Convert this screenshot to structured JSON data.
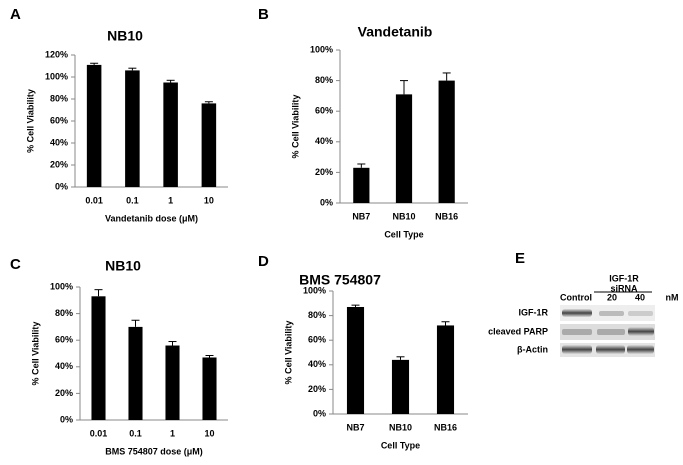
{
  "chart_data": [
    {
      "type": "bar",
      "panel_label": "A",
      "title": "NB10",
      "x_label": "Vandetanib dose (μM)",
      "y_label": "% Cell Viability",
      "categories": [
        "0.01",
        "0.1",
        "1",
        "10"
      ],
      "values": [
        111,
        106,
        95,
        76
      ],
      "errors": [
        1.5,
        2,
        2,
        1.5
      ],
      "color": "#000000",
      "ylim": [
        0,
        120
      ],
      "yticks": [
        {
          "value": 0,
          "label": "0%"
        },
        {
          "value": 20,
          "label": "20%"
        },
        {
          "value": 40,
          "label": "40%"
        },
        {
          "value": 60,
          "label": "60%"
        },
        {
          "value": 80,
          "label": "80%"
        },
        {
          "value": 100,
          "label": "100%"
        },
        {
          "value": 120,
          "label": "120%"
        }
      ]
    },
    {
      "type": "bar",
      "panel_label": "B",
      "title": "Vandetanib",
      "x_label": "Cell Type",
      "y_label": "% Cell Viability",
      "categories": [
        "NB7",
        "NB10",
        "NB16"
      ],
      "values": [
        23,
        71,
        80
      ],
      "errors": [
        2.5,
        9,
        5
      ],
      "color": "#000000",
      "ylim": [
        0,
        100
      ],
      "yticks": [
        {
          "value": 0,
          "label": "0%"
        },
        {
          "value": 20,
          "label": "20%"
        },
        {
          "value": 40,
          "label": "40%"
        },
        {
          "value": 60,
          "label": "60%"
        },
        {
          "value": 80,
          "label": "80%"
        },
        {
          "value": 100,
          "label": "100%"
        }
      ]
    },
    {
      "type": "bar",
      "panel_label": "C",
      "title": "NB10",
      "x_label": "BMS 754807 dose (μM)",
      "y_label": "% Cell Viability",
      "categories": [
        "0.01",
        "0.1",
        "1",
        "10"
      ],
      "values": [
        93,
        70,
        56,
        47
      ],
      "errors": [
        5,
        5,
        3,
        1.5
      ],
      "color": "#000000",
      "ylim": [
        0,
        100
      ],
      "yticks": [
        {
          "value": 0,
          "label": "0%"
        },
        {
          "value": 20,
          "label": "20%"
        },
        {
          "value": 40,
          "label": "40%"
        },
        {
          "value": 60,
          "label": "60%"
        },
        {
          "value": 80,
          "label": "80%"
        },
        {
          "value": 100,
          "label": "100%"
        }
      ]
    },
    {
      "type": "bar",
      "panel_label": "D",
      "title": "BMS 754807",
      "x_label": "Cell Type",
      "y_label": "% Cell Viability",
      "categories": [
        "NB7",
        "NB10",
        "NB16"
      ],
      "values": [
        87,
        44,
        72
      ],
      "errors": [
        1.5,
        2.5,
        3
      ],
      "color": "#000000",
      "ylim": [
        0,
        100
      ],
      "yticks": [
        {
          "value": 0,
          "label": "0%"
        },
        {
          "value": 20,
          "label": "20%"
        },
        {
          "value": 40,
          "label": "40%"
        },
        {
          "value": 60,
          "label": "60%"
        },
        {
          "value": 80,
          "label": "80%"
        },
        {
          "value": 100,
          "label": "100%"
        }
      ]
    }
  ],
  "blot": {
    "panel_label": "E",
    "treatment": "IGF-1R",
    "treatment_type": "siRNA",
    "lanes": [
      "Control",
      "20",
      "40"
    ],
    "unit": "nM",
    "rows": [
      "IGF-1R",
      "cleaved PARP",
      "β-Actin"
    ]
  }
}
